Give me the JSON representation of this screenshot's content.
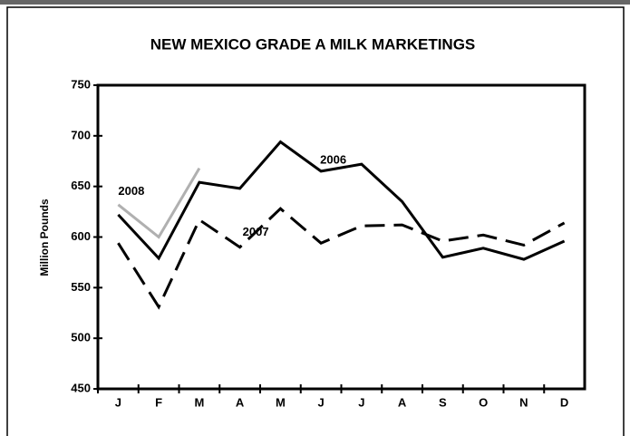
{
  "chart_data": {
    "type": "line",
    "title": "NEW MEXICO GRADE A MILK MARKETINGS",
    "y_label": "Million Pounds",
    "categories": [
      "J",
      "F",
      "M",
      "A",
      "M",
      "J",
      "J",
      "A",
      "S",
      "O",
      "N",
      "D"
    ],
    "series": [
      {
        "name": "2006",
        "color": "#000000",
        "dash": "solid",
        "values": [
          622,
          579,
          654,
          648,
          694,
          665,
          672,
          635,
          580,
          589,
          578,
          596
        ]
      },
      {
        "name": "2007",
        "color": "#000000",
        "dash": "dashed",
        "values": [
          594,
          531,
          617,
          590,
          628,
          594,
          611,
          612,
          596,
          602,
          592,
          614
        ]
      },
      {
        "name": "2008",
        "color": "#b0b0b0",
        "dash": "solid",
        "values": [
          632,
          600,
          668,
          null,
          null,
          null,
          null,
          null,
          null,
          null,
          null,
          null
        ]
      }
    ],
    "ylim": [
      450,
      750
    ],
    "yticks": [
      450,
      500,
      550,
      600,
      650,
      700,
      750
    ]
  }
}
